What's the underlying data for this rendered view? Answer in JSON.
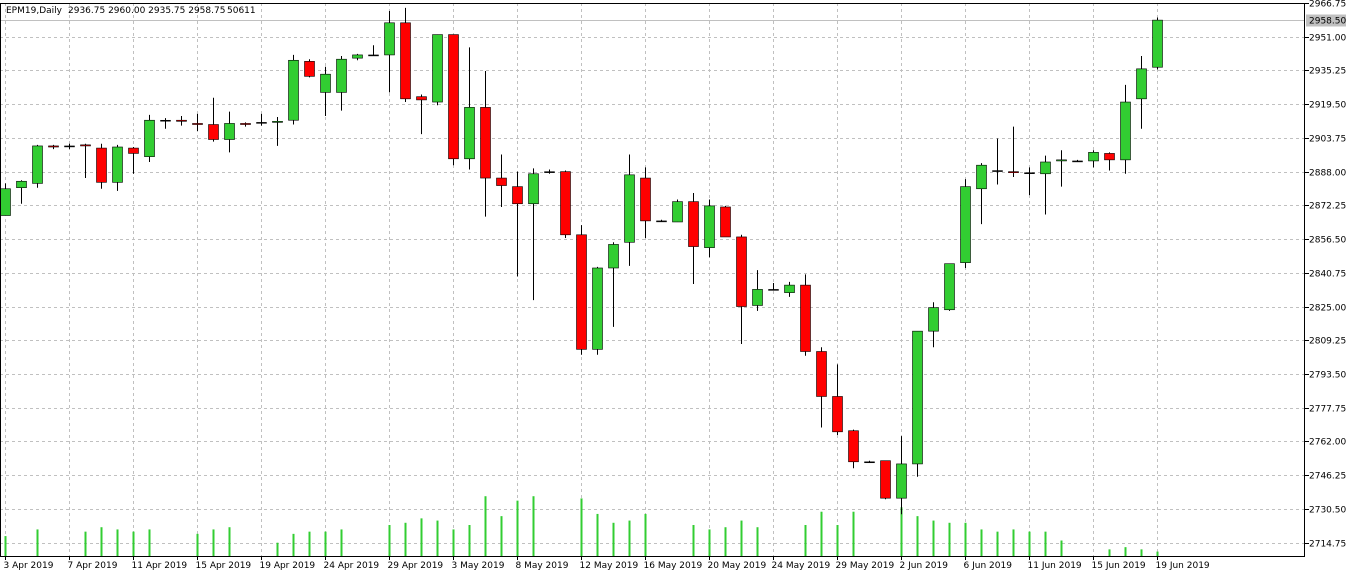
{
  "header": {
    "symbol": "EPM19,Daily",
    "ohlc": "2936.75 2960.00 2935.75 2958.75",
    "volume": "50611"
  },
  "current_price_label": "2958.50",
  "colors": {
    "up": "#32cd32",
    "down": "#ff0000",
    "doji": "#000000",
    "volume": "#32cd32",
    "grid": "#c0c0c0",
    "axis": "#000000",
    "price_line": "#c0c0c0"
  },
  "chart_data": {
    "type": "candlestick",
    "y_ticks": [
      "2966.75",
      "2951.00",
      "2935.25",
      "2919.50",
      "2903.75",
      "2888.00",
      "2872.25",
      "2856.50",
      "2840.75",
      "2825.00",
      "2809.25",
      "2793.50",
      "2777.75",
      "2762.00",
      "2746.25",
      "2730.50",
      "2714.75"
    ],
    "ylim": [
      2708.5,
      2966.75
    ],
    "x_labels": [
      {
        "label": "3 Apr 2019",
        "index": 0
      },
      {
        "label": "7 Apr 2019",
        "index": 4
      },
      {
        "label": "11 Apr 2019",
        "index": 8
      },
      {
        "label": "15 Apr 2019",
        "index": 12
      },
      {
        "label": "19 Apr 2019",
        "index": 16
      },
      {
        "label": "24 Apr 2019",
        "index": 20
      },
      {
        "label": "29 Apr 2019",
        "index": 24
      },
      {
        "label": "3 May 2019",
        "index": 28
      },
      {
        "label": "8 May 2019",
        "index": 32
      },
      {
        "label": "12 May 2019",
        "index": 36
      },
      {
        "label": "16 May 2019",
        "index": 40
      },
      {
        "label": "20 May 2019",
        "index": 44
      },
      {
        "label": "24 May 2019",
        "index": 48
      },
      {
        "label": "29 May 2019",
        "index": 52
      },
      {
        "label": "2 Jun 2019",
        "index": 56
      },
      {
        "label": "6 Jun 2019",
        "index": 60
      },
      {
        "label": "11 Jun 2019",
        "index": 64
      },
      {
        "label": "15 Jun 2019",
        "index": 68
      },
      {
        "label": "19 Jun 2019",
        "index": 72
      }
    ],
    "candles": [
      [
        2867.5,
        2882.5,
        2867.5,
        2880.0,
        90
      ],
      [
        2880.5,
        2884.0,
        2873.0,
        2883.5,
        0
      ],
      [
        2882.5,
        2900.5,
        2880.5,
        2900.0,
        120
      ],
      [
        2900.0,
        2900.5,
        2898.5,
        2899.5,
        0
      ],
      [
        2900.0,
        2901.0,
        2898.5,
        2900.0,
        0
      ],
      [
        2900.5,
        2901.0,
        2885.0,
        2900.0,
        110
      ],
      [
        2899.0,
        2901.0,
        2880.0,
        2883.0,
        130
      ],
      [
        2883.0,
        2900.5,
        2879.0,
        2899.5,
        120
      ],
      [
        2899.0,
        2899.5,
        2887.0,
        2896.5,
        110
      ],
      [
        2895.0,
        2914.5,
        2892.5,
        2912.0,
        120
      ],
      [
        2912.0,
        2913.0,
        2908.0,
        2912.0,
        0
      ],
      [
        2912.0,
        2914.0,
        2909.5,
        2911.5,
        0
      ],
      [
        2910.5,
        2915.0,
        2907.0,
        2910.0,
        100
      ],
      [
        2910.0,
        2922.5,
        2902.0,
        2903.0,
        120
      ],
      [
        2903.0,
        2916.0,
        2897.0,
        2910.5,
        130
      ],
      [
        2910.5,
        2911.0,
        2909.0,
        2910.0,
        0
      ],
      [
        2911.0,
        2915.0,
        2909.5,
        2911.0,
        0
      ],
      [
        2911.0,
        2913.5,
        2900.0,
        2911.5,
        60
      ],
      [
        2912.0,
        2942.5,
        2910.0,
        2940.0,
        100
      ],
      [
        2939.5,
        2940.5,
        2932.0,
        2932.5,
        110
      ],
      [
        2925.0,
        2937.0,
        2914.0,
        2933.5,
        110
      ],
      [
        2925.0,
        2942.0,
        2916.5,
        2940.5,
        120
      ],
      [
        2941.0,
        2943.0,
        2940.0,
        2942.5,
        0
      ],
      [
        2942.5,
        2947.0,
        2942.0,
        2942.5,
        0
      ],
      [
        2942.5,
        2963.0,
        2925.0,
        2957.5,
        140
      ],
      [
        2957.5,
        2964.5,
        2920.5,
        2922.0,
        150
      ],
      [
        2923.0,
        2924.0,
        2905.5,
        2921.5,
        170
      ],
      [
        2920.5,
        2952.0,
        2919.0,
        2952.0,
        160
      ],
      [
        2952.0,
        2952.0,
        2891.0,
        2894.0,
        120
      ],
      [
        2894.0,
        2946.0,
        2889.0,
        2918.0,
        140
      ],
      [
        2918.0,
        2935.0,
        2867.0,
        2885.0,
        270
      ],
      [
        2885.0,
        2896.0,
        2871.5,
        2881.5,
        180
      ],
      [
        2881.0,
        2888.0,
        2839.0,
        2873.0,
        250
      ],
      [
        2873.0,
        2889.5,
        2828.0,
        2887.0,
        270
      ],
      [
        2888.0,
        2889.0,
        2887.0,
        2888.0,
        0
      ],
      [
        2888.0,
        2888.5,
        2857.0,
        2858.5,
        0
      ],
      [
        2858.5,
        2863.0,
        2802.5,
        2805.0,
        260
      ],
      [
        2805.0,
        2843.5,
        2802.5,
        2843.0,
        190
      ],
      [
        2843.0,
        2855.0,
        2815.5,
        2854.0,
        150
      ],
      [
        2855.0,
        2896.0,
        2844.0,
        2886.5,
        160
      ],
      [
        2885.0,
        2890.0,
        2857.0,
        2865.0,
        190
      ],
      [
        2865.0,
        2865.5,
        2864.5,
        2865.0,
        0
      ],
      [
        2864.5,
        2875.0,
        2864.5,
        2874.0,
        0
      ],
      [
        2874.0,
        2878.0,
        2835.5,
        2853.0,
        140
      ],
      [
        2852.5,
        2875.0,
        2848.0,
        2872.0,
        120
      ],
      [
        2871.5,
        2872.0,
        2860.0,
        2857.5,
        130
      ],
      [
        2857.5,
        2858.5,
        2807.5,
        2825.0,
        160
      ],
      [
        2825.5,
        2842.0,
        2823.0,
        2833.0,
        130
      ],
      [
        2833.0,
        2836.0,
        2832.5,
        2833.0,
        0
      ],
      [
        2831.5,
        2836.5,
        2829.5,
        2835.0,
        0
      ],
      [
        2835.0,
        2840.0,
        2802.0,
        2804.0,
        140
      ],
      [
        2804.0,
        2806.0,
        2768.5,
        2783.0,
        200
      ],
      [
        2783.0,
        2798.0,
        2765.0,
        2766.5,
        140
      ],
      [
        2767.0,
        2767.5,
        2749.5,
        2752.5,
        200
      ],
      [
        2752.5,
        2753.0,
        2752.0,
        2752.5,
        0
      ],
      [
        2753.0,
        2753.0,
        2735.0,
        2735.5,
        0
      ],
      [
        2735.5,
        2764.5,
        2728.0,
        2751.5,
        220
      ],
      [
        2751.5,
        2813.5,
        2745.5,
        2813.5,
        180
      ],
      [
        2813.5,
        2827.0,
        2806.0,
        2824.5,
        160
      ],
      [
        2823.5,
        2845.0,
        2823.0,
        2845.0,
        150
      ],
      [
        2845.5,
        2884.5,
        2843.0,
        2881.0,
        150
      ],
      [
        2880.0,
        2892.0,
        2863.5,
        2891.0,
        120
      ],
      [
        2888.5,
        2903.5,
        2882.0,
        2888.5,
        110
      ],
      [
        2888.0,
        2909.0,
        2885.5,
        2887.5,
        120
      ],
      [
        2887.5,
        2890.0,
        2877.0,
        2887.5,
        110
      ],
      [
        2887.0,
        2895.5,
        2868.0,
        2892.5,
        110
      ],
      [
        2893.0,
        2898.0,
        2881.0,
        2893.5,
        70
      ],
      [
        2893.0,
        2893.5,
        2892.5,
        2893.0,
        0
      ],
      [
        2893.0,
        2898.0,
        2890.0,
        2897.0,
        0
      ],
      [
        2896.5,
        2897.0,
        2888.5,
        2893.5,
        30
      ],
      [
        2893.5,
        2928.5,
        2887.0,
        2920.5,
        40
      ],
      [
        2922.0,
        2942.0,
        2908.0,
        2936.0,
        30
      ],
      [
        2936.75,
        2960.0,
        2935.75,
        2958.75,
        20
      ]
    ]
  }
}
